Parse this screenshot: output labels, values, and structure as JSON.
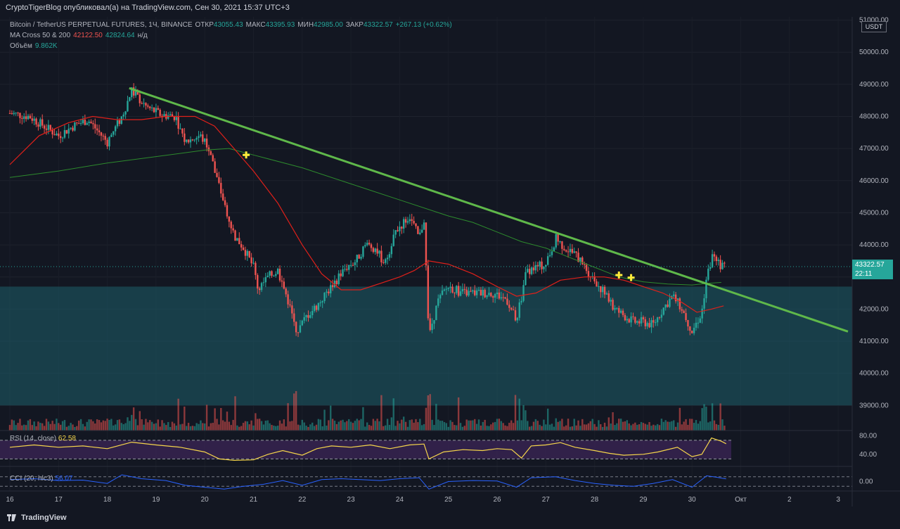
{
  "header": {
    "caption": "CryptoTigerBlog опубликовал(а) на TradingView.com, Сен 30, 2021 15:37 UTC+3"
  },
  "legend": {
    "symbol": "Bitcoin / TetherUS PERPETUAL FUTURES, 1Ч, BINANCE",
    "open_label": "ОТКР",
    "open": "43055.43",
    "high_label": "МАКС",
    "high": "43395.93",
    "low_label": "МИН",
    "low": "42985.00",
    "close_label": "ЗАКР",
    "close": "43322.57",
    "change": "+267.13 (+0.62%)",
    "ma_name": "MA Cross 50 & 200",
    "ma50": "42122.50",
    "ma200": "42824.64",
    "ma_na": "н/д",
    "volume_label": "Объём",
    "volume": "9.862K"
  },
  "indicators": {
    "rsi_name": "RSI (14, close)",
    "rsi_value": "62.58",
    "cci_name": "CCI (20, hlc3)",
    "cci_value": "56.07"
  },
  "price_tag": {
    "price": "43322.57",
    "countdown": "22:11"
  },
  "unit": "USDT",
  "footer": {
    "brand": "TradingView"
  },
  "colors": {
    "background": "#131722",
    "up": "#26a69a",
    "down": "#ef5350",
    "ma50": "#e0201a",
    "ma200": "#2d8a2d",
    "trendline": "#5fb84a",
    "zone": "#1d5e6a",
    "rsi_line": "#f5d54b",
    "rsi_band": "#3a2454",
    "cci_line": "#2962ff",
    "marker": "#ffeb3b"
  },
  "chart_data": {
    "type": "candlestick",
    "timeframe": "1Ч",
    "x": [
      "16",
      "17",
      "18",
      "19",
      "20",
      "21",
      "22",
      "23",
      "24",
      "25",
      "26",
      "27",
      "28",
      "29",
      "30",
      "Окт",
      "2",
      "3"
    ],
    "price_axis": [
      "51000.00",
      "50000.00",
      "49000.00",
      "48000.00",
      "47000.00",
      "46000.00",
      "45000.00",
      "44000.00",
      "43000.00",
      "42000.00",
      "41000.00",
      "40000.00",
      "39000.00"
    ],
    "ylim": [
      38700,
      51100
    ],
    "rsi_axis": [
      "80.00",
      "40.00"
    ],
    "cci_axis": [
      "0.00"
    ],
    "price_path": [
      [
        16.0,
        48100
      ],
      [
        16.4,
        48000
      ],
      [
        16.7,
        47700
      ],
      [
        17.0,
        47400
      ],
      [
        17.3,
        47700
      ],
      [
        17.6,
        47900
      ],
      [
        18.0,
        47200
      ],
      [
        18.3,
        48000
      ],
      [
        18.5,
        48800
      ],
      [
        18.8,
        48300
      ],
      [
        19.1,
        48050
      ],
      [
        19.4,
        48000
      ],
      [
        19.6,
        47200
      ],
      [
        19.9,
        47400
      ],
      [
        20.1,
        47000
      ],
      [
        20.2,
        46300
      ],
      [
        20.4,
        45300
      ],
      [
        20.6,
        44300
      ],
      [
        20.8,
        43900
      ],
      [
        21.0,
        43300
      ],
      [
        21.1,
        42600
      ],
      [
        21.3,
        43000
      ],
      [
        21.5,
        43200
      ],
      [
        21.7,
        42300
      ],
      [
        21.9,
        41300
      ],
      [
        22.1,
        41800
      ],
      [
        22.3,
        42100
      ],
      [
        22.5,
        42500
      ],
      [
        22.7,
        42900
      ],
      [
        22.9,
        43300
      ],
      [
        23.1,
        43500
      ],
      [
        23.3,
        44000
      ],
      [
        23.5,
        43900
      ],
      [
        23.7,
        43400
      ],
      [
        23.9,
        44400
      ],
      [
        24.2,
        44900
      ],
      [
        24.4,
        44200
      ],
      [
        24.5,
        44800
      ],
      [
        24.6,
        41200
      ],
      [
        24.8,
        42300
      ],
      [
        25.0,
        42700
      ],
      [
        25.3,
        42500
      ],
      [
        25.6,
        42500
      ],
      [
        25.9,
        42500
      ],
      [
        26.2,
        42300
      ],
      [
        26.4,
        41600
      ],
      [
        26.6,
        43200
      ],
      [
        26.8,
        43300
      ],
      [
        27.0,
        43400
      ],
      [
        27.2,
        44200
      ],
      [
        27.4,
        43900
      ],
      [
        27.6,
        43700
      ],
      [
        27.8,
        43300
      ],
      [
        28.0,
        42900
      ],
      [
        28.2,
        42500
      ],
      [
        28.4,
        42000
      ],
      [
        28.6,
        41800
      ],
      [
        28.8,
        41600
      ],
      [
        29.0,
        41600
      ],
      [
        29.2,
        41500
      ],
      [
        29.4,
        42000
      ],
      [
        29.6,
        42400
      ],
      [
        29.8,
        42000
      ],
      [
        30.0,
        41300
      ],
      [
        30.2,
        41900
      ],
      [
        30.3,
        43000
      ],
      [
        30.45,
        43800
      ],
      [
        30.6,
        43300
      ],
      [
        30.7,
        43300
      ]
    ],
    "ma50_path": [
      [
        16.0,
        46500
      ],
      [
        16.6,
        47400
      ],
      [
        17.2,
        47800
      ],
      [
        17.7,
        48000
      ],
      [
        18.2,
        47900
      ],
      [
        18.7,
        47900
      ],
      [
        19.2,
        48000
      ],
      [
        19.8,
        48000
      ],
      [
        20.2,
        47700
      ],
      [
        20.6,
        47000
      ],
      [
        21.0,
        46300
      ],
      [
        21.5,
        45300
      ],
      [
        22.0,
        44000
      ],
      [
        22.4,
        43100
      ],
      [
        22.8,
        42600
      ],
      [
        23.2,
        42600
      ],
      [
        23.6,
        42800
      ],
      [
        24.0,
        43000
      ],
      [
        24.3,
        43200
      ],
      [
        24.6,
        43500
      ],
      [
        25.0,
        43400
      ],
      [
        25.5,
        43100
      ],
      [
        26.0,
        42700
      ],
      [
        26.4,
        42400
      ],
      [
        26.8,
        42500
      ],
      [
        27.3,
        42900
      ],
      [
        27.8,
        43000
      ],
      [
        28.2,
        43000
      ],
      [
        28.6,
        42900
      ],
      [
        29.0,
        42700
      ],
      [
        29.4,
        42500
      ],
      [
        29.8,
        42200
      ],
      [
        30.1,
        41900
      ],
      [
        30.4,
        42000
      ],
      [
        30.65,
        42100
      ]
    ],
    "ma200_path": [
      [
        16.0,
        46100
      ],
      [
        17.0,
        46300
      ],
      [
        18.0,
        46550
      ],
      [
        19.0,
        46750
      ],
      [
        20.0,
        46950
      ],
      [
        20.5,
        47000
      ],
      [
        21.0,
        46800
      ],
      [
        22.0,
        46400
      ],
      [
        23.0,
        45900
      ],
      [
        24.0,
        45400
      ],
      [
        25.0,
        44900
      ],
      [
        25.5,
        44700
      ],
      [
        26.0,
        44400
      ],
      [
        26.5,
        44100
      ],
      [
        27.0,
        43900
      ],
      [
        27.5,
        43600
      ],
      [
        28.0,
        43300
      ],
      [
        28.5,
        43000
      ],
      [
        29.0,
        42850
      ],
      [
        29.5,
        42780
      ],
      [
        30.0,
        42750
      ],
      [
        30.3,
        42800
      ],
      [
        30.6,
        42830
      ]
    ],
    "trendline": [
      [
        18.45,
        48880
      ],
      [
        33.2,
        41300
      ]
    ],
    "zone": [
      39000,
      42700
    ],
    "cross_markers": [
      [
        20.85,
        46800
      ],
      [
        28.5,
        43060
      ],
      [
        28.75,
        42980
      ]
    ],
    "rsi_bounds": [
      30,
      70
    ],
    "rsi_path": [
      [
        16.0,
        55
      ],
      [
        16.5,
        60
      ],
      [
        17.0,
        55
      ],
      [
        17.5,
        58
      ],
      [
        18.0,
        52
      ],
      [
        18.5,
        66
      ],
      [
        19.0,
        60
      ],
      [
        19.5,
        55
      ],
      [
        20.0,
        45
      ],
      [
        20.3,
        30
      ],
      [
        20.6,
        27
      ],
      [
        21.0,
        28
      ],
      [
        21.3,
        40
      ],
      [
        21.6,
        48
      ],
      [
        22.0,
        38
      ],
      [
        22.3,
        52
      ],
      [
        22.6,
        58
      ],
      [
        23.0,
        55
      ],
      [
        23.4,
        60
      ],
      [
        23.8,
        52
      ],
      [
        24.2,
        60
      ],
      [
        24.5,
        62
      ],
      [
        24.6,
        30
      ],
      [
        24.9,
        45
      ],
      [
        25.3,
        50
      ],
      [
        25.7,
        48
      ],
      [
        26.0,
        52
      ],
      [
        26.3,
        50
      ],
      [
        26.5,
        32
      ],
      [
        26.7,
        58
      ],
      [
        27.0,
        60
      ],
      [
        27.3,
        65
      ],
      [
        27.6,
        55
      ],
      [
        28.0,
        48
      ],
      [
        28.3,
        42
      ],
      [
        28.6,
        38
      ],
      [
        29.0,
        40
      ],
      [
        29.3,
        45
      ],
      [
        29.7,
        55
      ],
      [
        30.0,
        35
      ],
      [
        30.2,
        40
      ],
      [
        30.4,
        75
      ],
      [
        30.6,
        68
      ],
      [
        30.7,
        62.58
      ]
    ],
    "cci_path": [
      [
        16.0,
        40
      ],
      [
        16.5,
        60
      ],
      [
        17.0,
        20
      ],
      [
        17.5,
        30
      ],
      [
        18.0,
        -40
      ],
      [
        18.3,
        140
      ],
      [
        18.7,
        60
      ],
      [
        19.2,
        20
      ],
      [
        19.6,
        -80
      ],
      [
        20.0,
        -120
      ],
      [
        20.4,
        -160
      ],
      [
        20.8,
        -100
      ],
      [
        21.2,
        -60
      ],
      [
        21.6,
        20
      ],
      [
        22.0,
        -80
      ],
      [
        22.4,
        40
      ],
      [
        22.8,
        60
      ],
      [
        23.2,
        40
      ],
      [
        23.6,
        20
      ],
      [
        24.0,
        60
      ],
      [
        24.4,
        80
      ],
      [
        24.6,
        -160
      ],
      [
        25.0,
        0
      ],
      [
        25.5,
        20
      ],
      [
        26.0,
        10
      ],
      [
        26.4,
        -120
      ],
      [
        26.7,
        80
      ],
      [
        27.2,
        100
      ],
      [
        27.6,
        20
      ],
      [
        28.0,
        -40
      ],
      [
        28.4,
        -80
      ],
      [
        28.8,
        -100
      ],
      [
        29.2,
        -40
      ],
      [
        29.6,
        40
      ],
      [
        30.0,
        -120
      ],
      [
        30.3,
        120
      ],
      [
        30.5,
        90
      ],
      [
        30.7,
        56.07
      ]
    ]
  }
}
